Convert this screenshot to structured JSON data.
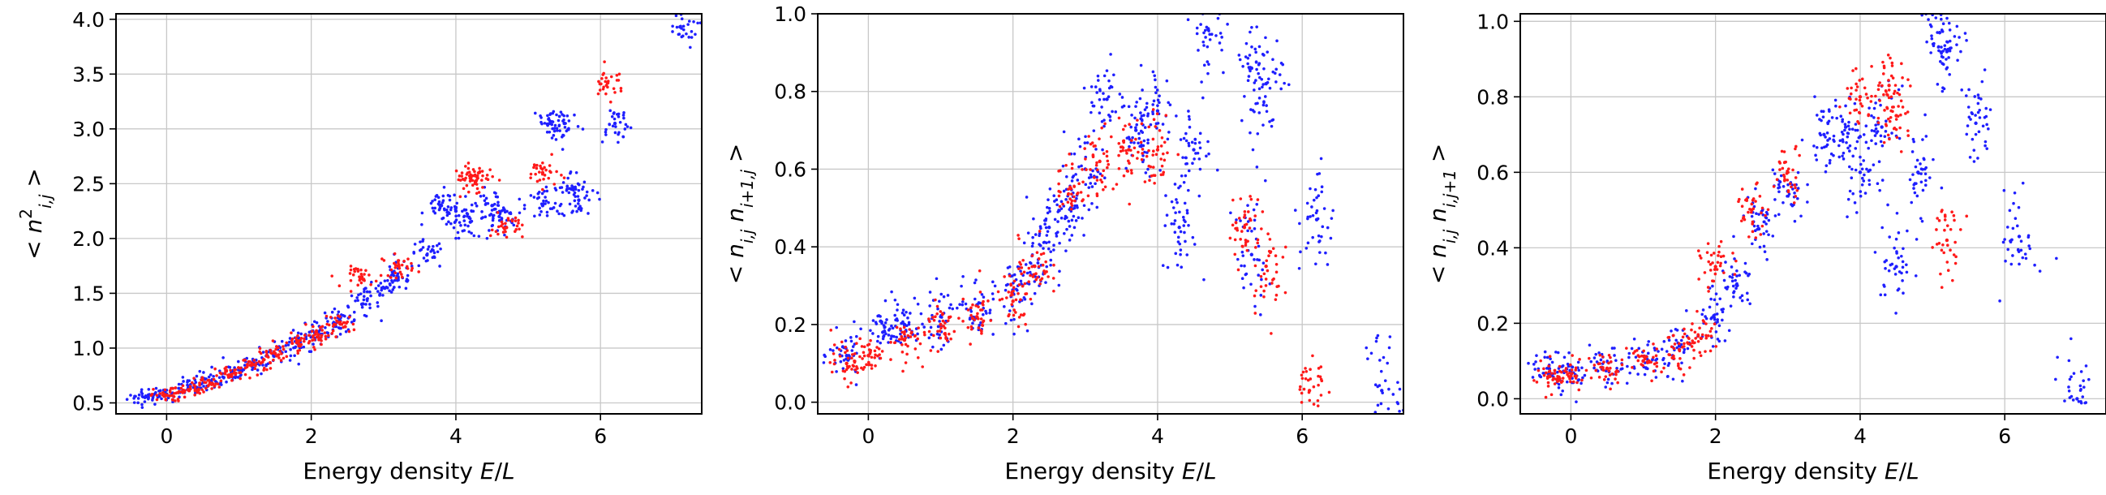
{
  "colors": {
    "series_a": "#1f1fff",
    "series_b": "#ff1a1a"
  },
  "chart_data": [
    {
      "type": "scatter",
      "xlabel": "Energy density E/L",
      "ylabel": "< n²_{i,j} >",
      "xlim": [
        -0.7,
        7.4
      ],
      "ylim": [
        0.4,
        4.05
      ],
      "xticks": [
        0,
        2,
        4,
        6
      ],
      "yticks": [
        0.5,
        1.0,
        1.5,
        2.0,
        2.5,
        3.0,
        3.5,
        4.0
      ],
      "ytick_labels": [
        "0.5",
        "1.0",
        "1.5",
        "2.0",
        "2.5",
        "3.0",
        "3.5",
        "4.0"
      ],
      "grid": true,
      "series": [
        {
          "color": "#1f1fff",
          "points": [
            [
              -0.3,
              0.55
            ],
            [
              0.0,
              0.58
            ],
            [
              0.3,
              0.64
            ],
            [
              0.6,
              0.7
            ],
            [
              0.9,
              0.78
            ],
            [
              1.2,
              0.86
            ],
            [
              1.5,
              0.95
            ],
            [
              1.8,
              1.05
            ],
            [
              2.1,
              1.15
            ],
            [
              2.4,
              1.25
            ],
            [
              2.7,
              1.4
            ],
            [
              3.0,
              1.55
            ],
            [
              3.2,
              1.65
            ],
            [
              3.6,
              1.85
            ],
            [
              3.8,
              2.3
            ],
            [
              4.0,
              2.25
            ],
            [
              4.2,
              2.15
            ],
            [
              4.5,
              2.3
            ],
            [
              4.6,
              2.2
            ],
            [
              5.2,
              2.3
            ],
            [
              5.3,
              3.05
            ],
            [
              5.5,
              3.05
            ],
            [
              5.6,
              2.45
            ],
            [
              5.7,
              2.35
            ],
            [
              6.2,
              3.05
            ],
            [
              7.1,
              3.93
            ]
          ]
        },
        {
          "color": "#ff1a1a",
          "points": [
            [
              0.0,
              0.57
            ],
            [
              0.3,
              0.62
            ],
            [
              0.6,
              0.68
            ],
            [
              0.9,
              0.76
            ],
            [
              1.2,
              0.85
            ],
            [
              1.5,
              0.95
            ],
            [
              1.8,
              1.05
            ],
            [
              2.1,
              1.12
            ],
            [
              2.4,
              1.22
            ],
            [
              2.7,
              1.65
            ],
            [
              3.2,
              1.75
            ],
            [
              4.2,
              2.55
            ],
            [
              4.3,
              2.55
            ],
            [
              4.7,
              2.1
            ],
            [
              5.2,
              2.6
            ],
            [
              6.1,
              3.42
            ]
          ]
        }
      ]
    },
    {
      "type": "scatter",
      "xlabel": "Energy density E/L",
      "ylabel": "< n_{i,j} n_{i+1,j} >",
      "xlim": [
        -0.7,
        7.4
      ],
      "ylim": [
        -0.03,
        1.0
      ],
      "xticks": [
        0,
        2,
        4,
        6
      ],
      "yticks": [
        0.0,
        0.2,
        0.4,
        0.6,
        0.8,
        1.0
      ],
      "ytick_labels": [
        "0.0",
        "0.2",
        "0.4",
        "0.6",
        "0.8",
        "1.0"
      ],
      "grid": true,
      "series": [
        {
          "color": "#1f1fff",
          "points": [
            [
              -0.3,
              0.12
            ],
            [
              0.2,
              0.18
            ],
            [
              0.5,
              0.2
            ],
            [
              1.0,
              0.22
            ],
            [
              1.5,
              0.25
            ],
            [
              2.0,
              0.28
            ],
            [
              2.3,
              0.35
            ],
            [
              2.5,
              0.45
            ],
            [
              2.8,
              0.5
            ],
            [
              3.0,
              0.6
            ],
            [
              3.3,
              0.78
            ],
            [
              3.7,
              0.7
            ],
            [
              4.0,
              0.75
            ],
            [
              4.3,
              0.45
            ],
            [
              4.5,
              0.65
            ],
            [
              4.7,
              0.96
            ],
            [
              5.3,
              0.86
            ],
            [
              5.5,
              0.82
            ],
            [
              5.3,
              0.38
            ],
            [
              6.2,
              0.47
            ],
            [
              7.1,
              0.03
            ]
          ]
        },
        {
          "color": "#ff1a1a",
          "points": [
            [
              -0.3,
              0.1
            ],
            [
              0.0,
              0.12
            ],
            [
              0.5,
              0.16
            ],
            [
              1.0,
              0.2
            ],
            [
              1.5,
              0.22
            ],
            [
              2.0,
              0.26
            ],
            [
              2.3,
              0.35
            ],
            [
              2.8,
              0.55
            ],
            [
              3.2,
              0.62
            ],
            [
              3.6,
              0.65
            ],
            [
              4.0,
              0.65
            ],
            [
              5.2,
              0.45
            ],
            [
              5.5,
              0.35
            ],
            [
              6.1,
              0.03
            ]
          ]
        }
      ]
    },
    {
      "type": "scatter",
      "xlabel": "Energy density E/L",
      "ylabel": "< n_{i,j} n_{i,j+1} >",
      "xlim": [
        -0.7,
        7.4
      ],
      "ylim": [
        -0.04,
        1.02
      ],
      "xticks": [
        0,
        2,
        4,
        6
      ],
      "yticks": [
        0.0,
        0.2,
        0.4,
        0.6,
        0.8,
        1.0
      ],
      "ytick_labels": [
        "0.0",
        "0.2",
        "0.4",
        "0.6",
        "0.8",
        "1.0"
      ],
      "grid": true,
      "series": [
        {
          "color": "#1f1fff",
          "points": [
            [
              -0.3,
              0.08
            ],
            [
              0.0,
              0.07
            ],
            [
              0.5,
              0.08
            ],
            [
              1.0,
              0.1
            ],
            [
              1.5,
              0.14
            ],
            [
              2.0,
              0.2
            ],
            [
              2.3,
              0.3
            ],
            [
              2.6,
              0.45
            ],
            [
              3.0,
              0.55
            ],
            [
              3.5,
              0.7
            ],
            [
              3.8,
              0.72
            ],
            [
              4.0,
              0.6
            ],
            [
              4.3,
              0.72
            ],
            [
              4.5,
              0.35
            ],
            [
              4.8,
              0.6
            ],
            [
              5.1,
              0.97
            ],
            [
              5.2,
              0.92
            ],
            [
              5.6,
              0.73
            ],
            [
              6.2,
              0.43
            ],
            [
              7.0,
              0.0
            ]
          ]
        },
        {
          "color": "#ff1a1a",
          "points": [
            [
              -0.3,
              0.06
            ],
            [
              0.0,
              0.06
            ],
            [
              0.5,
              0.08
            ],
            [
              1.0,
              0.1
            ],
            [
              1.5,
              0.13
            ],
            [
              1.8,
              0.16
            ],
            [
              2.0,
              0.35
            ],
            [
              2.5,
              0.5
            ],
            [
              3.0,
              0.6
            ],
            [
              4.0,
              0.8
            ],
            [
              4.4,
              0.83
            ],
            [
              4.5,
              0.75
            ],
            [
              5.2,
              0.42
            ]
          ]
        }
      ]
    }
  ]
}
